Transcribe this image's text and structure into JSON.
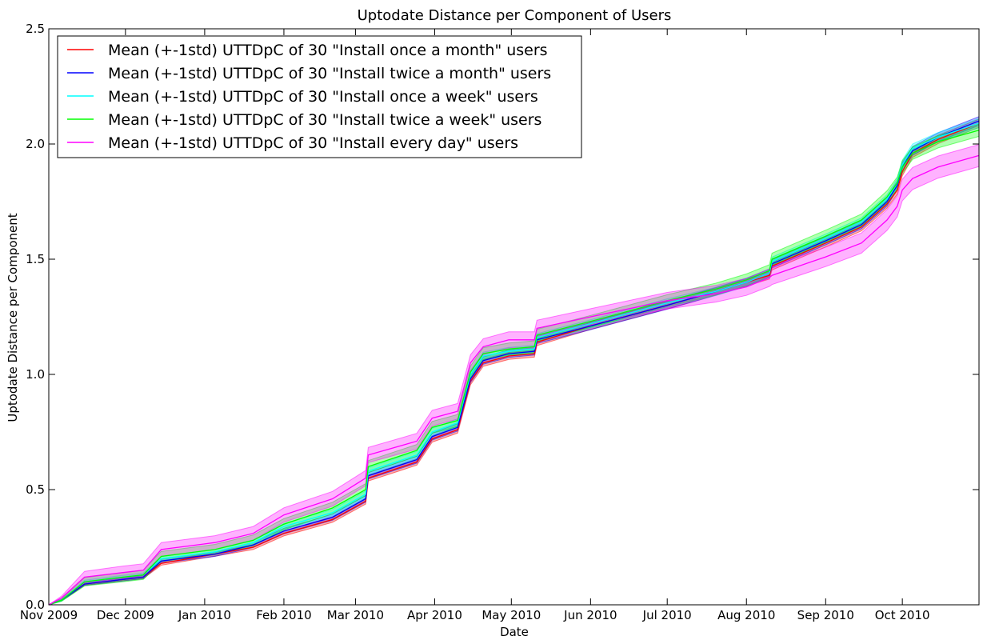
{
  "chart_data": {
    "type": "line",
    "title": "Uptodate Distance per Component of Users",
    "xlabel": "Date",
    "ylabel": "Uptodate Distance per Component",
    "x_axis": "date",
    "xlim": [
      "2009-11-01",
      "2010-10-31"
    ],
    "ylim": [
      0.0,
      2.5
    ],
    "yticks": [
      "0.0",
      "0.5",
      "1.0",
      "1.5",
      "2.0",
      "2.5"
    ],
    "xticks": [
      {
        "date": "2009-11-01",
        "label": "Nov 2009"
      },
      {
        "date": "2009-12-01",
        "label": "Dec 2009"
      },
      {
        "date": "2010-01-01",
        "label": "Jan 2010"
      },
      {
        "date": "2010-02-01",
        "label": "Feb 2010"
      },
      {
        "date": "2010-03-01",
        "label": "Mar 2010"
      },
      {
        "date": "2010-04-01",
        "label": "Apr 2010"
      },
      {
        "date": "2010-05-01",
        "label": "May 2010"
      },
      {
        "date": "2010-06-01",
        "label": "Jun 2010"
      },
      {
        "date": "2010-07-01",
        "label": "Jul 2010"
      },
      {
        "date": "2010-08-01",
        "label": "Aug 2010"
      },
      {
        "date": "2010-09-01",
        "label": "Sep 2010"
      },
      {
        "date": "2010-10-01",
        "label": "Oct 2010"
      }
    ],
    "grid": false,
    "legend_position": "top-left",
    "band": "mean ± 1 std",
    "x": [
      "2009-11-01",
      "2009-11-06",
      "2009-11-15",
      "2009-11-30",
      "2009-12-08",
      "2009-12-15",
      "2010-01-05",
      "2010-01-20",
      "2010-02-01",
      "2010-02-20",
      "2010-03-05",
      "2010-03-06",
      "2010-03-25",
      "2010-03-31",
      "2010-04-10",
      "2010-04-15",
      "2010-04-20",
      "2010-04-30",
      "2010-05-10",
      "2010-05-11",
      "2010-06-01",
      "2010-07-01",
      "2010-07-20",
      "2010-08-01",
      "2010-08-10",
      "2010-08-11",
      "2010-09-01",
      "2010-09-15",
      "2010-09-25",
      "2010-09-29",
      "2010-10-01",
      "2010-10-05",
      "2010-10-15",
      "2010-10-31"
    ],
    "series": [
      {
        "name": "Mean (+-1std) UTTDpC of 30 \"Install once a month\" users",
        "color": "#ff0000",
        "values": [
          0.0,
          0.02,
          0.09,
          0.11,
          0.12,
          0.18,
          0.22,
          0.25,
          0.31,
          0.37,
          0.45,
          0.55,
          0.62,
          0.72,
          0.76,
          0.97,
          1.05,
          1.08,
          1.09,
          1.14,
          1.21,
          1.3,
          1.36,
          1.4,
          1.43,
          1.47,
          1.57,
          1.64,
          1.74,
          1.8,
          1.88,
          1.96,
          2.02,
          2.09
        ],
        "std": [
          0.0,
          0.003,
          0.005,
          0.006,
          0.006,
          0.008,
          0.009,
          0.01,
          0.011,
          0.012,
          0.013,
          0.013,
          0.014,
          0.014,
          0.015,
          0.015,
          0.015,
          0.015,
          0.015,
          0.015,
          0.015,
          0.016,
          0.016,
          0.016,
          0.016,
          0.017,
          0.017,
          0.017,
          0.018,
          0.018,
          0.018,
          0.018,
          0.018,
          0.018
        ]
      },
      {
        "name": "Mean (+-1std) UTTDpC of 30 \"Install twice a month\" users",
        "color": "#0000ff",
        "values": [
          0.0,
          0.02,
          0.09,
          0.11,
          0.12,
          0.19,
          0.22,
          0.26,
          0.32,
          0.38,
          0.46,
          0.56,
          0.63,
          0.73,
          0.77,
          0.98,
          1.06,
          1.09,
          1.1,
          1.15,
          1.21,
          1.3,
          1.36,
          1.4,
          1.44,
          1.48,
          1.58,
          1.65,
          1.75,
          1.82,
          1.9,
          1.97,
          2.03,
          2.1
        ],
        "std": [
          0.0,
          0.003,
          0.006,
          0.007,
          0.007,
          0.009,
          0.01,
          0.011,
          0.012,
          0.013,
          0.014,
          0.014,
          0.015,
          0.015,
          0.016,
          0.016,
          0.016,
          0.016,
          0.016,
          0.016,
          0.016,
          0.017,
          0.017,
          0.017,
          0.017,
          0.018,
          0.018,
          0.018,
          0.019,
          0.019,
          0.019,
          0.019,
          0.019,
          0.019
        ]
      },
      {
        "name": "Mean (+-1std) UTTDpC of 30 \"Install once a week\" users",
        "color": "#00ffff",
        "values": [
          0.0,
          0.02,
          0.1,
          0.12,
          0.13,
          0.2,
          0.23,
          0.27,
          0.34,
          0.4,
          0.48,
          0.58,
          0.65,
          0.75,
          0.79,
          1.0,
          1.08,
          1.1,
          1.11,
          1.16,
          1.22,
          1.31,
          1.36,
          1.4,
          1.44,
          1.49,
          1.59,
          1.66,
          1.76,
          1.83,
          1.91,
          1.98,
          2.03,
          2.09
        ],
        "std": [
          0.0,
          0.004,
          0.007,
          0.008,
          0.008,
          0.01,
          0.011,
          0.012,
          0.013,
          0.014,
          0.015,
          0.015,
          0.016,
          0.016,
          0.017,
          0.017,
          0.017,
          0.017,
          0.017,
          0.017,
          0.017,
          0.018,
          0.018,
          0.018,
          0.018,
          0.019,
          0.019,
          0.019,
          0.02,
          0.02,
          0.02,
          0.02,
          0.02,
          0.02
        ]
      },
      {
        "name": "Mean (+-1std) UTTDpC of 30 \"Install twice a week\" users",
        "color": "#00ff00",
        "values": [
          0.0,
          0.02,
          0.1,
          0.12,
          0.13,
          0.21,
          0.24,
          0.28,
          0.35,
          0.42,
          0.5,
          0.6,
          0.67,
          0.77,
          0.8,
          1.01,
          1.09,
          1.11,
          1.12,
          1.17,
          1.23,
          1.32,
          1.37,
          1.41,
          1.45,
          1.5,
          1.6,
          1.67,
          1.77,
          1.83,
          1.9,
          1.96,
          2.01,
          2.06
        ],
        "std": [
          0.0,
          0.005,
          0.018,
          0.02,
          0.02,
          0.022,
          0.022,
          0.023,
          0.024,
          0.025,
          0.026,
          0.026,
          0.026,
          0.026,
          0.026,
          0.026,
          0.026,
          0.026,
          0.026,
          0.026,
          0.026,
          0.026,
          0.026,
          0.026,
          0.026,
          0.026,
          0.026,
          0.026,
          0.027,
          0.027,
          0.027,
          0.027,
          0.027,
          0.027
        ]
      },
      {
        "name": "Mean (+-1std) UTTDpC of 30 \"Install every day\" users",
        "color": "#ff00ff",
        "values": [
          0.0,
          0.03,
          0.12,
          0.14,
          0.15,
          0.24,
          0.27,
          0.31,
          0.39,
          0.46,
          0.55,
          0.65,
          0.71,
          0.81,
          0.84,
          1.05,
          1.12,
          1.15,
          1.15,
          1.2,
          1.25,
          1.32,
          1.35,
          1.38,
          1.42,
          1.43,
          1.51,
          1.57,
          1.67,
          1.73,
          1.8,
          1.85,
          1.9,
          1.95
        ],
        "std": [
          0.0,
          0.008,
          0.025,
          0.028,
          0.028,
          0.03,
          0.03,
          0.03,
          0.031,
          0.032,
          0.033,
          0.033,
          0.034,
          0.034,
          0.034,
          0.035,
          0.035,
          0.035,
          0.035,
          0.035,
          0.035,
          0.036,
          0.036,
          0.037,
          0.038,
          0.04,
          0.042,
          0.044,
          0.045,
          0.046,
          0.047,
          0.048,
          0.048,
          0.048
        ]
      }
    ]
  }
}
